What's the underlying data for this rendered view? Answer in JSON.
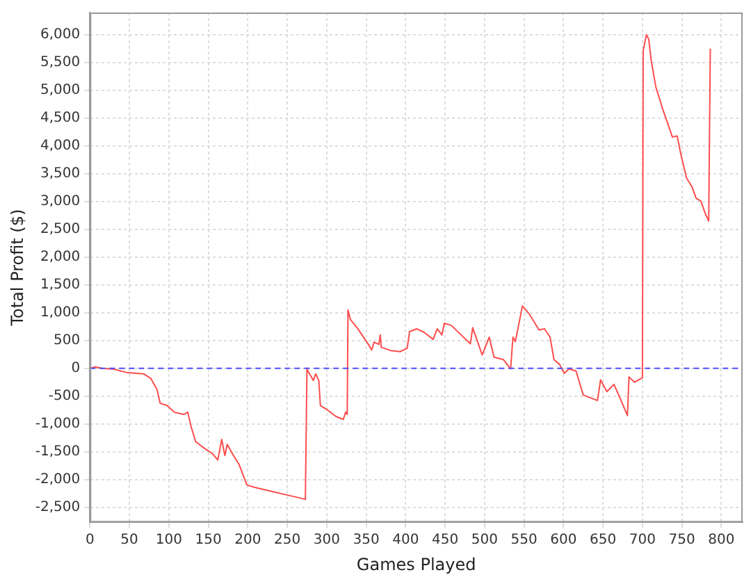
{
  "chart_data": {
    "type": "line",
    "xlabel": "Games Played",
    "ylabel": "Total Profit ($)",
    "xlim": [
      0,
      827
    ],
    "ylim": [
      -2770,
      6400
    ],
    "xticks": [
      0,
      50,
      100,
      150,
      200,
      250,
      300,
      350,
      400,
      450,
      500,
      550,
      600,
      650,
      700,
      750,
      800
    ],
    "yticks": [
      {
        "value": -2500,
        "label": "-2,500"
      },
      {
        "value": -2000,
        "label": "-2,000"
      },
      {
        "value": -1500,
        "label": "-1,500"
      },
      {
        "value": -1000,
        "label": "-1,000"
      },
      {
        "value": -500,
        "label": "-500"
      },
      {
        "value": 0,
        "label": "0"
      },
      {
        "value": 500,
        "label": "500"
      },
      {
        "value": 1000,
        "label": "1,000"
      },
      {
        "value": 1500,
        "label": "1,500"
      },
      {
        "value": 2000,
        "label": "2,000"
      },
      {
        "value": 2500,
        "label": "2,500"
      },
      {
        "value": 3000,
        "label": "3,000"
      },
      {
        "value": 3500,
        "label": "3,500"
      },
      {
        "value": 4000,
        "label": "4,000"
      },
      {
        "value": 4500,
        "label": "4,500"
      },
      {
        "value": 5000,
        "label": "5,000"
      },
      {
        "value": 5500,
        "label": "5,500"
      },
      {
        "value": 6000,
        "label": "6,000"
      }
    ],
    "grid": true,
    "legend": false,
    "marker": "none",
    "line_style": "solid",
    "ref_lines": [
      {
        "axis": "y",
        "value": 0,
        "label": null,
        "color": "#4d4dff",
        "line_style": "dashed"
      }
    ],
    "series": [
      {
        "color": "#ff4d4d",
        "x": [
          0,
          7,
          15,
          30,
          48,
          68,
          77,
          85,
          89,
          98,
          107,
          119,
          124,
          128,
          134,
          146,
          155,
          162,
          167,
          171,
          174,
          182,
          189,
          199,
          208,
          232,
          256,
          271,
          273,
          275,
          283,
          286,
          290,
          292,
          301,
          312,
          321,
          324,
          326,
          327,
          330,
          339,
          351,
          357,
          360,
          366,
          368,
          369,
          381,
          393,
          402,
          405,
          414,
          423,
          435,
          440,
          446,
          449,
          458,
          482,
          485,
          497,
          506,
          512,
          524,
          533,
          536,
          539,
          548,
          557,
          569,
          576,
          583,
          588,
          595,
          601,
          607,
          616,
          625,
          643,
          647,
          655,
          664,
          673,
          681,
          683,
          690,
          700,
          701,
          705,
          708,
          711,
          717,
          726,
          738,
          744,
          749,
          756,
          763,
          768,
          774,
          780,
          784,
          786
        ],
        "values": [
          0,
          25,
          0,
          -15,
          -80,
          -100,
          -180,
          -380,
          -630,
          -670,
          -790,
          -830,
          -790,
          -1040,
          -1320,
          -1450,
          -1530,
          -1650,
          -1280,
          -1570,
          -1370,
          -1570,
          -1730,
          -2100,
          -2140,
          -2220,
          -2300,
          -2350,
          -2360,
          -15,
          -220,
          -100,
          -220,
          -670,
          -750,
          -870,
          -920,
          -790,
          -830,
          1050,
          880,
          720,
          470,
          330,
          470,
          430,
          600,
          380,
          320,
          300,
          360,
          660,
          710,
          650,
          520,
          710,
          600,
          810,
          770,
          440,
          730,
          240,
          560,
          200,
          155,
          -10,
          560,
          480,
          1120,
          970,
          690,
          710,
          560,
          155,
          70,
          -90,
          -10,
          -50,
          -480,
          -580,
          -210,
          -420,
          -290,
          -580,
          -850,
          -155,
          -250,
          -170,
          5710,
          6000,
          5920,
          5550,
          5060,
          4650,
          4160,
          4180,
          3830,
          3420,
          3260,
          3060,
          3010,
          2770,
          2650,
          5750
        ]
      }
    ]
  }
}
